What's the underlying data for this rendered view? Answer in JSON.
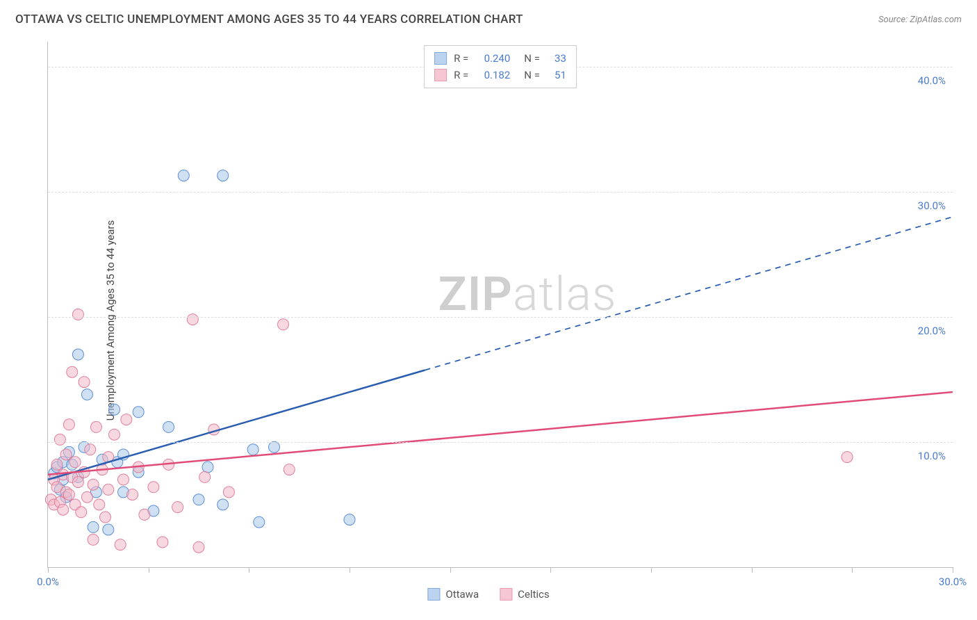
{
  "title": "OTTAWA VS CELTIC UNEMPLOYMENT AMONG AGES 35 TO 44 YEARS CORRELATION CHART",
  "source": "Source: ZipAtlas.com",
  "watermark_a": "ZIP",
  "watermark_b": "atlas",
  "chart": {
    "type": "scatter",
    "ylabel": "Unemployment Among Ages 35 to 44 years",
    "xlim": [
      0,
      30
    ],
    "ylim": [
      0,
      42
    ],
    "x_ticks": [
      0,
      3.33,
      6.67,
      10,
      13.33,
      16.67,
      20,
      23.33,
      26.67,
      30
    ],
    "x_tick_labels": {
      "0": "0.0%",
      "30": "30.0%"
    },
    "y_gridlines": [
      10,
      20,
      30,
      40
    ],
    "y_tick_labels": {
      "10": "10.0%",
      "20": "20.0%",
      "30": "30.0%",
      "40": "40.0%"
    },
    "axis_label_color": "#4a7bd0",
    "grid_color": "#dddddd",
    "marker_radius": 8,
    "marker_opacity": 0.55,
    "series": [
      {
        "name": "Ottawa",
        "color_fill": "#a8c6ea",
        "color_stroke": "#5b8fd6",
        "legend_swatch_fill": "#bcd3ef",
        "legend_swatch_stroke": "#7fa8dd",
        "R": "0.240",
        "N": "33",
        "trend": {
          "x1": 0,
          "y1": 7.0,
          "x2": 30,
          "y2": 28.0,
          "solid_until_x": 12.5,
          "color": "#2a5db0",
          "width": 2.5
        },
        "points": [
          [
            0.2,
            7.5
          ],
          [
            0.3,
            8.0
          ],
          [
            0.4,
            6.2
          ],
          [
            0.5,
            8.4
          ],
          [
            0.5,
            7.0
          ],
          [
            0.6,
            5.6
          ],
          [
            0.7,
            9.2
          ],
          [
            0.8,
            8.2
          ],
          [
            1.0,
            7.2
          ],
          [
            1.0,
            17.0
          ],
          [
            1.2,
            9.6
          ],
          [
            1.3,
            13.8
          ],
          [
            1.5,
            3.2
          ],
          [
            1.6,
            6.0
          ],
          [
            1.8,
            8.6
          ],
          [
            2.0,
            3.0
          ],
          [
            2.2,
            12.6
          ],
          [
            2.3,
            8.4
          ],
          [
            2.5,
            6.0
          ],
          [
            2.5,
            9.0
          ],
          [
            3.0,
            12.4
          ],
          [
            3.0,
            7.6
          ],
          [
            3.5,
            4.5
          ],
          [
            4.0,
            11.2
          ],
          [
            4.5,
            31.3
          ],
          [
            5.0,
            5.4
          ],
          [
            5.3,
            8.0
          ],
          [
            5.8,
            31.3
          ],
          [
            5.8,
            5.0
          ],
          [
            6.8,
            9.4
          ],
          [
            7.0,
            3.6
          ],
          [
            7.5,
            9.6
          ],
          [
            10.0,
            3.8
          ]
        ]
      },
      {
        "name": "Celtics",
        "color_fill": "#f2b8c6",
        "color_stroke": "#e07f9c",
        "legend_swatch_fill": "#f6c6d2",
        "legend_swatch_stroke": "#e79ab0",
        "R": "0.182",
        "N": "51",
        "trend": {
          "x1": 0,
          "y1": 7.4,
          "x2": 30,
          "y2": 14.0,
          "solid_until_x": 30,
          "color": "#e14b77",
          "width": 2.5
        },
        "points": [
          [
            0.1,
            5.4
          ],
          [
            0.2,
            7.0
          ],
          [
            0.2,
            5.0
          ],
          [
            0.3,
            8.2
          ],
          [
            0.3,
            6.4
          ],
          [
            0.4,
            5.2
          ],
          [
            0.4,
            10.2
          ],
          [
            0.5,
            7.4
          ],
          [
            0.5,
            4.6
          ],
          [
            0.6,
            6.0
          ],
          [
            0.6,
            9.0
          ],
          [
            0.7,
            11.4
          ],
          [
            0.7,
            5.8
          ],
          [
            0.8,
            7.2
          ],
          [
            0.8,
            15.6
          ],
          [
            0.9,
            5.0
          ],
          [
            0.9,
            8.4
          ],
          [
            1.0,
            20.2
          ],
          [
            1.0,
            6.8
          ],
          [
            1.1,
            4.4
          ],
          [
            1.2,
            7.6
          ],
          [
            1.2,
            14.8
          ],
          [
            1.3,
            5.6
          ],
          [
            1.4,
            9.4
          ],
          [
            1.5,
            6.6
          ],
          [
            1.5,
            2.2
          ],
          [
            1.6,
            11.2
          ],
          [
            1.7,
            5.0
          ],
          [
            1.8,
            7.8
          ],
          [
            1.9,
            4.0
          ],
          [
            2.0,
            8.8
          ],
          [
            2.0,
            6.2
          ],
          [
            2.2,
            10.6
          ],
          [
            2.4,
            1.8
          ],
          [
            2.5,
            7.0
          ],
          [
            2.6,
            11.8
          ],
          [
            2.8,
            5.8
          ],
          [
            3.0,
            8.0
          ],
          [
            3.2,
            4.2
          ],
          [
            3.5,
            6.4
          ],
          [
            3.8,
            2.0
          ],
          [
            4.0,
            8.2
          ],
          [
            4.3,
            4.8
          ],
          [
            4.8,
            19.8
          ],
          [
            5.0,
            1.6
          ],
          [
            5.2,
            7.2
          ],
          [
            5.5,
            11.0
          ],
          [
            6.0,
            6.0
          ],
          [
            7.8,
            19.4
          ],
          [
            8.0,
            7.8
          ],
          [
            26.5,
            8.8
          ]
        ]
      }
    ]
  }
}
